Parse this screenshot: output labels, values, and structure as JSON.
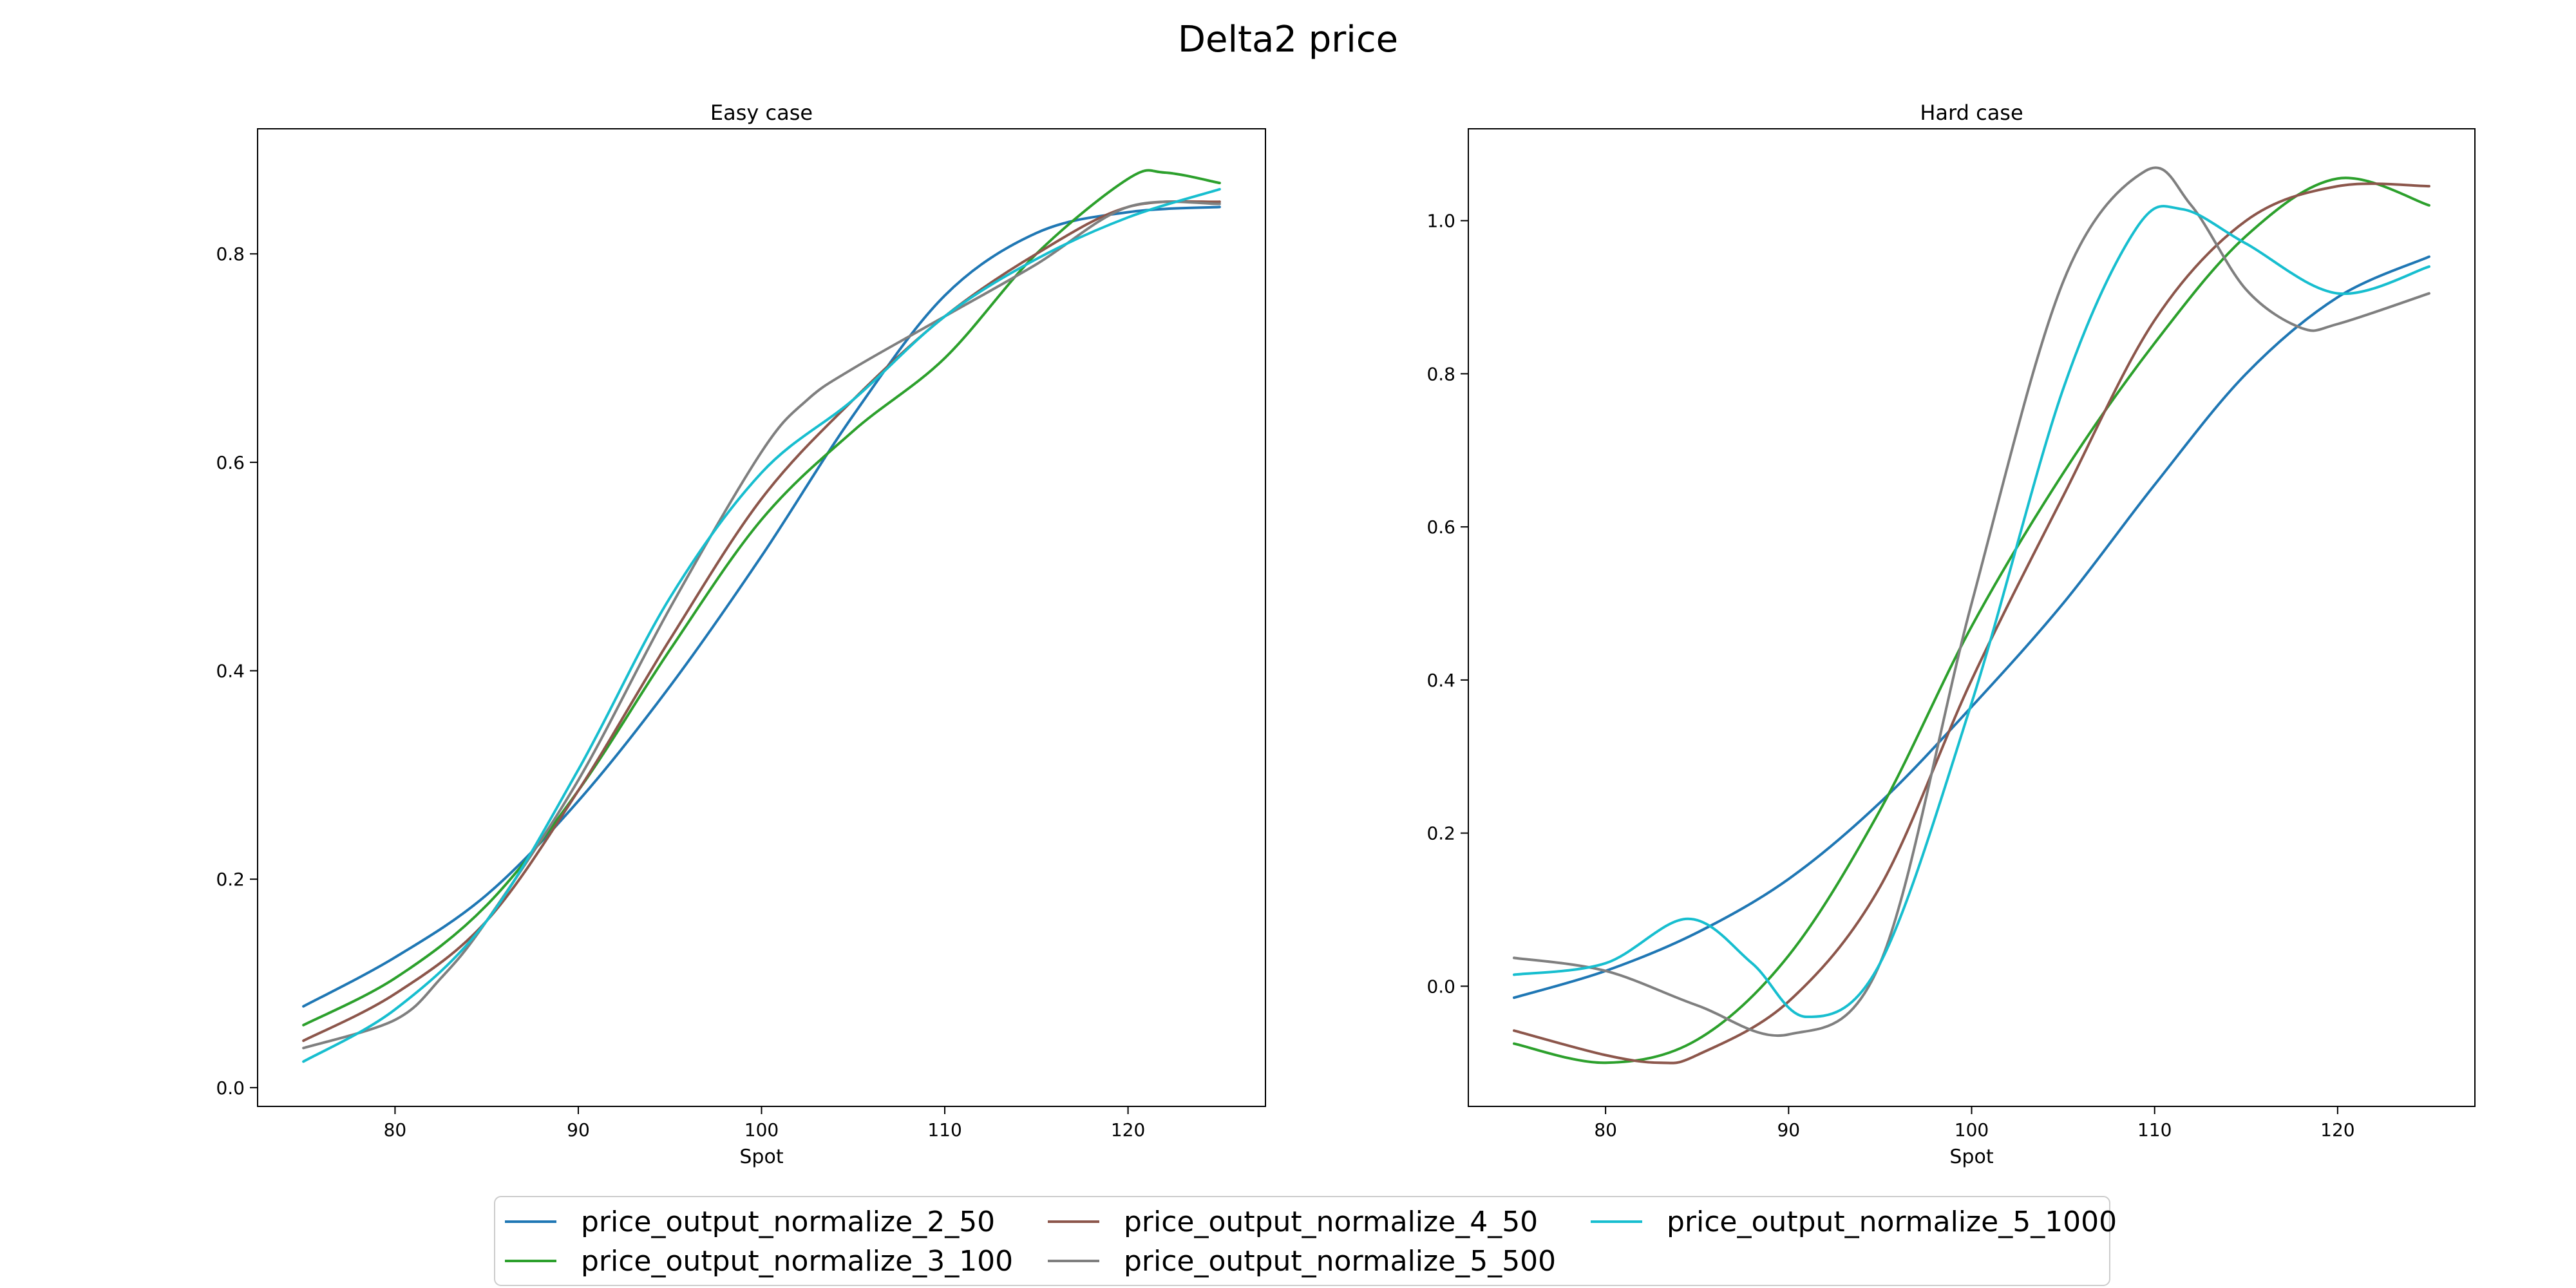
{
  "figure": {
    "title": "Delta2 price"
  },
  "series_styles": [
    {
      "name": "price_output_normalize_2_50",
      "color": "#1f77b4"
    },
    {
      "name": "price_output_normalize_3_100",
      "color": "#2ca02c"
    },
    {
      "name": "price_output_normalize_4_50",
      "color": "#8c564b"
    },
    {
      "name": "price_output_normalize_5_500",
      "color": "#7f7f7f"
    },
    {
      "name": "price_output_normalize_5_1000",
      "color": "#17becf"
    }
  ],
  "legend": {
    "placement": "bottom-center",
    "columns": 3
  },
  "chart_data": [
    {
      "type": "line",
      "title": "Easy case",
      "xlabel": "Spot",
      "ylabel": "",
      "xlim": [
        72.5,
        127.5
      ],
      "ylim": [
        -0.018,
        0.92
      ],
      "xticks": [
        80,
        90,
        100,
        110,
        120
      ],
      "yticks": [
        0.0,
        0.2,
        0.4,
        0.6,
        0.8
      ],
      "ytick_labels": [
        "0.0",
        "0.2",
        "0.4",
        "0.6",
        "0.8"
      ],
      "grid": false,
      "series": [
        {
          "name": "price_output_normalize_2_50",
          "x": [
            75,
            80,
            85,
            90,
            95,
            100,
            105,
            110,
            115,
            120,
            125
          ],
          "y": [
            0.078,
            0.125,
            0.185,
            0.275,
            0.385,
            0.51,
            0.645,
            0.76,
            0.82,
            0.84,
            0.845
          ]
        },
        {
          "name": "price_output_normalize_3_100",
          "x": [
            75,
            80,
            85,
            90,
            95,
            100,
            105,
            110,
            115,
            120,
            122,
            125
          ],
          "y": [
            0.06,
            0.105,
            0.175,
            0.285,
            0.42,
            0.545,
            0.63,
            0.7,
            0.8,
            0.872,
            0.878,
            0.868
          ]
        },
        {
          "name": "price_output_normalize_4_50",
          "x": [
            75,
            80,
            85,
            90,
            95,
            100,
            105,
            110,
            115,
            120,
            125
          ],
          "y": [
            0.045,
            0.09,
            0.16,
            0.285,
            0.43,
            0.565,
            0.66,
            0.74,
            0.8,
            0.845,
            0.85
          ]
        },
        {
          "name": "price_output_normalize_5_500",
          "x": [
            75,
            80,
            82.5,
            85,
            90,
            95,
            100,
            102.5,
            105,
            110,
            115,
            120,
            125
          ],
          "y": [
            0.038,
            0.065,
            0.105,
            0.16,
            0.295,
            0.46,
            0.61,
            0.66,
            0.69,
            0.74,
            0.79,
            0.845,
            0.848
          ]
        },
        {
          "name": "price_output_normalize_5_1000",
          "x": [
            75,
            80,
            85,
            90,
            95,
            100,
            105,
            110,
            115,
            120,
            125
          ],
          "y": [
            0.025,
            0.075,
            0.16,
            0.305,
            0.47,
            0.59,
            0.66,
            0.74,
            0.795,
            0.835,
            0.862
          ]
        }
      ]
    },
    {
      "type": "line",
      "title": "Hard case",
      "xlabel": "Spot",
      "ylabel": "",
      "xlim": [
        72.5,
        127.5
      ],
      "ylim": [
        -0.157,
        1.12
      ],
      "xticks": [
        80,
        90,
        100,
        110,
        120
      ],
      "yticks": [
        0.0,
        0.2,
        0.4,
        0.6,
        0.8,
        1.0
      ],
      "ytick_labels": [
        "0.0",
        "0.2",
        "0.4",
        "0.6",
        "0.8",
        "1.0"
      ],
      "grid": false,
      "series": [
        {
          "name": "price_output_normalize_2_50",
          "x": [
            75,
            80,
            85,
            90,
            95,
            100,
            105,
            110,
            115,
            120,
            125
          ],
          "y": [
            -0.015,
            0.02,
            0.07,
            0.14,
            0.24,
            0.365,
            0.5,
            0.655,
            0.8,
            0.9,
            0.953
          ]
        },
        {
          "name": "price_output_normalize_3_100",
          "x": [
            75,
            80,
            85,
            90,
            95,
            100,
            105,
            110,
            115,
            120,
            125
          ],
          "y": [
            -0.075,
            -0.1,
            -0.07,
            0.04,
            0.23,
            0.47,
            0.67,
            0.84,
            0.98,
            1.055,
            1.02
          ]
        },
        {
          "name": "price_output_normalize_4_50",
          "x": [
            75,
            80,
            83,
            85,
            90,
            95,
            100,
            105,
            110,
            115,
            120,
            125
          ],
          "y": [
            -0.058,
            -0.09,
            -0.1,
            -0.09,
            -0.02,
            0.13,
            0.4,
            0.64,
            0.87,
            1.0,
            1.045,
            1.045
          ]
        },
        {
          "name": "price_output_normalize_5_500",
          "x": [
            75,
            80,
            85,
            90,
            95,
            100,
            105,
            109.5,
            112,
            115,
            118,
            120,
            125
          ],
          "y": [
            0.037,
            0.02,
            -0.025,
            -0.063,
            0.03,
            0.5,
            0.92,
            1.065,
            1.02,
            0.91,
            0.86,
            0.865,
            0.905
          ]
        },
        {
          "name": "price_output_normalize_5_1000",
          "x": [
            75,
            80,
            84.5,
            88,
            91,
            95,
            100,
            105,
            109,
            111.5,
            115,
            120,
            125
          ],
          "y": [
            0.015,
            0.03,
            0.088,
            0.03,
            -0.04,
            0.03,
            0.37,
            0.78,
            0.99,
            1.015,
            0.97,
            0.905,
            0.94
          ]
        }
      ]
    }
  ]
}
